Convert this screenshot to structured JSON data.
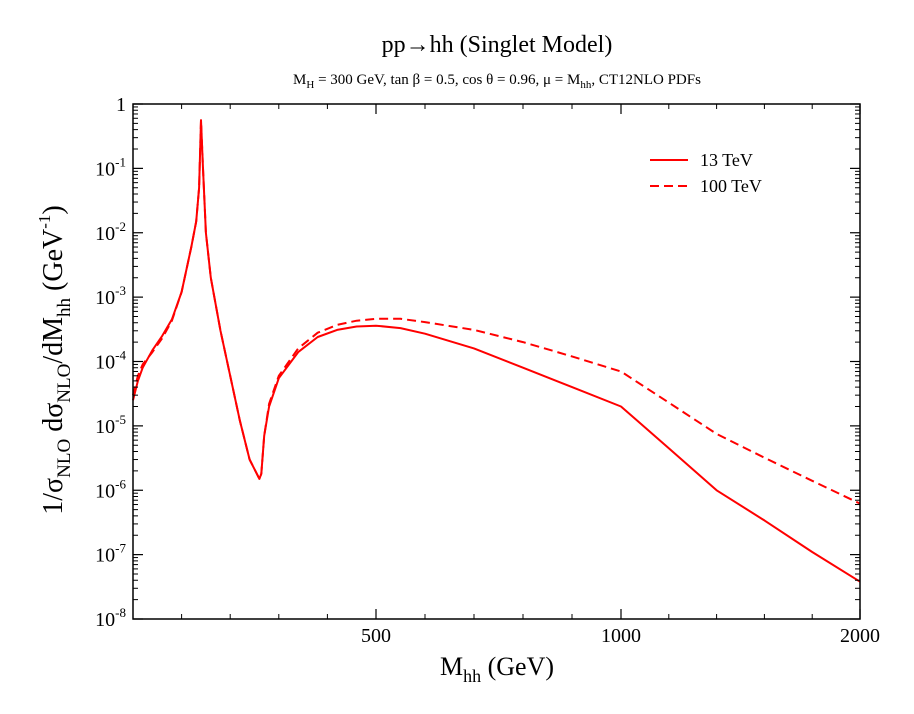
{
  "chart_data": {
    "type": "line",
    "title": "pp→hh (Singlet Model)",
    "subtitle": {
      "m": "M",
      "m_sub": "H",
      "part1": " = 300 GeV, tan β = 0.5, cos θ = 0.96, μ = M",
      "mu_sub": "hh",
      "part2": ", CT12NLO PDFs"
    },
    "xlabel": {
      "main": "M",
      "sub": "hh",
      "rest": " (GeV)"
    },
    "ylabel": {
      "pre": "1/σ",
      "sub1": "NLO",
      "mid": " dσ",
      "sub2": "NLO",
      "mid2": "/dM",
      "sub3": "hh",
      "mid3": " (GeV",
      "sup": "-1",
      "post": ")"
    },
    "x_ticks": [
      {
        "value": 500,
        "label": "500"
      },
      {
        "value": 1000,
        "label": "1000"
      },
      {
        "value": 2000,
        "label": "2000"
      }
    ],
    "y_ticks": [
      {
        "exp": 0,
        "label": "1",
        "sup": ""
      },
      {
        "exp": -1,
        "label": "10",
        "sup": "-1"
      },
      {
        "exp": -2,
        "label": "10",
        "sup": "-2"
      },
      {
        "exp": -3,
        "label": "10",
        "sup": "-3"
      },
      {
        "exp": -4,
        "label": "10",
        "sup": "-4"
      },
      {
        "exp": -5,
        "label": "10",
        "sup": "-5"
      },
      {
        "exp": -6,
        "label": "10",
        "sup": "-6"
      },
      {
        "exp": -7,
        "label": "10",
        "sup": "-7"
      },
      {
        "exp": -8,
        "label": "10",
        "sup": "-8"
      }
    ],
    "y_scale": "log",
    "ylim": [
      1e-08,
      1
    ],
    "legend_position": "top-right",
    "grid": false,
    "series": [
      {
        "name": "13 TeV",
        "color": "#ff0000",
        "dash": "solid",
        "x": [
          250,
          255,
          260,
          270,
          280,
          290,
          300,
          310,
          315,
          318,
          320,
          322,
          325,
          330,
          340,
          350,
          360,
          370,
          380,
          382,
          385,
          390,
          400,
          420,
          440,
          460,
          480,
          500,
          550,
          600,
          700,
          800,
          900,
          1000,
          1200,
          1400,
          1600,
          1800,
          2000
        ],
        "y": [
          2.5e-05,
          5e-05,
          8e-05,
          0.00015,
          0.00025,
          0.00045,
          0.0012,
          0.006,
          0.015,
          0.05,
          0.56,
          0.1,
          0.01,
          0.002,
          0.0003,
          6e-05,
          1.2e-05,
          3e-06,
          1.5e-06,
          1.8e-06,
          7e-06,
          2e-05,
          5.5e-05,
          0.00014,
          0.00024,
          0.00031,
          0.00035,
          0.00036,
          0.00033,
          0.00027,
          0.00016,
          8e-05,
          4e-05,
          2e-05,
          4.5e-06,
          1e-06,
          3.4e-07,
          1.1e-07,
          3.8e-08
        ]
      },
      {
        "name": "100 TeV",
        "color": "#ff0000",
        "dash": "dashed",
        "x": [
          250,
          255,
          260,
          270,
          280,
          290,
          300,
          310,
          315,
          318,
          320,
          322,
          325,
          330,
          340,
          350,
          360,
          370,
          380,
          382,
          385,
          390,
          400,
          420,
          440,
          460,
          480,
          500,
          550,
          600,
          700,
          800,
          900,
          1000,
          1200,
          1400,
          1600,
          1800,
          2000
        ],
        "y": [
          3e-05,
          6e-05,
          9e-05,
          0.00014,
          0.00023,
          0.00043,
          0.0012,
          0.006,
          0.015,
          0.05,
          0.56,
          0.1,
          0.01,
          0.002,
          0.0003,
          6e-05,
          1.2e-05,
          3e-06,
          1.5e-06,
          1.8e-06,
          7e-06,
          2.2e-05,
          6e-05,
          0.00016,
          0.00028,
          0.00037,
          0.00043,
          0.00046,
          0.00046,
          0.00041,
          0.00031,
          0.0002,
          0.00012,
          7e-05,
          2.3e-05,
          7.5e-06,
          3.2e-06,
          1.4e-06,
          6.2e-07
        ]
      }
    ]
  }
}
